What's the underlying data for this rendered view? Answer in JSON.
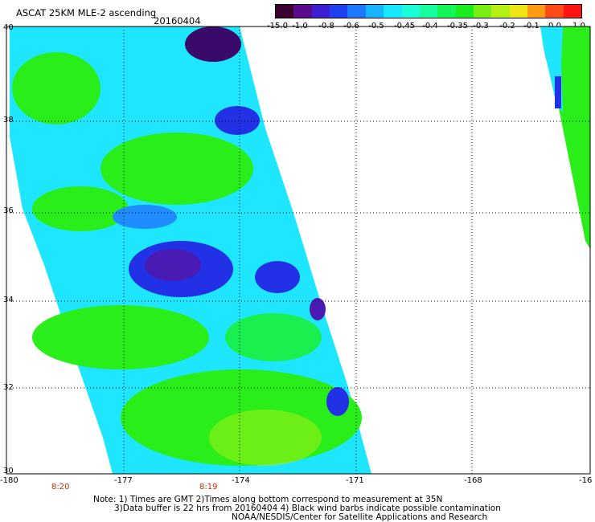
{
  "header": {
    "title": "ASCAT 25KM MLE-2 ascending",
    "date": "20160404"
  },
  "colorbar": {
    "colors": [
      "#3a0030",
      "#5a0a8c",
      "#3c1fd0",
      "#1f40f0",
      "#1c78ff",
      "#19b4ff",
      "#19e6ff",
      "#19ffd8",
      "#17ffa0",
      "#14f558",
      "#19ee1c",
      "#7aee14",
      "#b4f014",
      "#eee614",
      "#ff9a14",
      "#ff4b14",
      "#ff1414"
    ],
    "tick_labels": [
      "-15.0",
      "-1.0",
      "-0.8",
      "-0.6",
      "-0.5",
      "-0.45",
      "-0.4",
      "-0.35",
      "-0.3",
      "-0.2",
      "-0.1",
      "0.0",
      "1.0"
    ]
  },
  "map": {
    "lon_labels": [
      "-180",
      "-177",
      "-174",
      "-171",
      "-168",
      "-16"
    ],
    "lat_labels": [
      "40",
      "38",
      "36",
      "34",
      "32",
      "30"
    ],
    "time_labels": [
      "8:20",
      "8:19"
    ],
    "colors": {
      "dark_purple": "#3a0a6a",
      "purple": "#4a1ab4",
      "blue": "#2230e6",
      "light_blue": "#1f8cff",
      "cyan": "#1fe6ff",
      "teal": "#1bffc8",
      "green": "#19f050",
      "bright_green": "#2aee1a",
      "yellow_green": "#a0f014",
      "time_label_red": "#c0320b"
    }
  },
  "notes": {
    "line1": "Note: 1) Times are GMT 2)Times along bottom correspond to measurement at 35N",
    "line2": "3)Data buffer is 22 hrs from 20160404 4) Black wind barbs indicate possible contamination",
    "line3": "NOAA/NESDIS/Center for Satellite Applications and Research"
  }
}
